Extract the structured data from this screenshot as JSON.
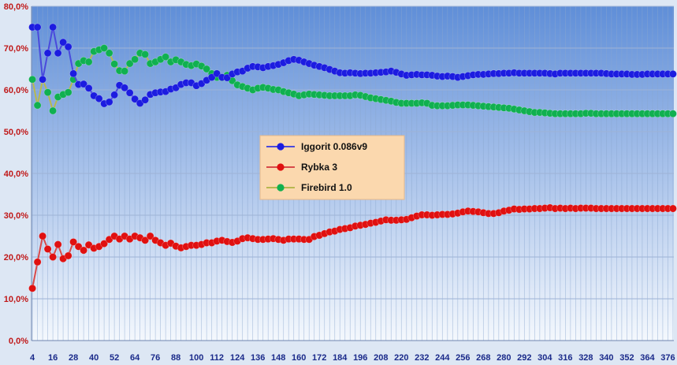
{
  "chart_data": {
    "type": "line",
    "title": "",
    "xlabel": "",
    "ylabel": "",
    "ylim": [
      0,
      80
    ],
    "y_ticks": [
      "0,0%",
      "10,0%",
      "20,0%",
      "30,0%",
      "40,0%",
      "50,0%",
      "60,0%",
      "70,0%",
      "80,0%"
    ],
    "x_ticks": [
      4,
      16,
      28,
      40,
      52,
      64,
      76,
      88,
      100,
      112,
      124,
      136,
      148,
      160,
      172,
      184,
      196,
      208,
      220,
      232,
      244,
      256,
      268,
      280,
      292,
      304,
      316,
      328,
      340,
      352,
      364,
      376
    ],
    "x_range": [
      4,
      379
    ],
    "x_step": 3,
    "grid": true,
    "legend_position": "center",
    "background_gradient": [
      "#5f8ed8",
      "#f4f8fd"
    ],
    "series": [
      {
        "name": "Iggorit 0.086v9",
        "color": "#1c1ce0",
        "line_color": "#4a4adc",
        "values": [
          75.0,
          75.0,
          62.5,
          68.8,
          75.0,
          68.8,
          71.4,
          70.3,
          63.9,
          61.3,
          61.4,
          60.4,
          58.6,
          57.9,
          56.7,
          57.1,
          58.8,
          61.1,
          60.5,
          59.3,
          57.8,
          56.8,
          57.6,
          58.9,
          59.3,
          59.5,
          59.6,
          60.2,
          60.5,
          61.3,
          61.7,
          61.7,
          61.0,
          61.5,
          62.3,
          63.0,
          63.9,
          63.0,
          62.9,
          63.8,
          64.3,
          64.5,
          65.2,
          65.6,
          65.5,
          65.3,
          65.6,
          65.8,
          66.1,
          66.5,
          67.0,
          67.3,
          67.1,
          66.7,
          66.3,
          65.9,
          65.6,
          65.3,
          64.9,
          64.5,
          64.1,
          64.0,
          64.1,
          64.0,
          63.9,
          64.0,
          64.0,
          64.1,
          64.2,
          64.3,
          64.5,
          64.2,
          63.8,
          63.5,
          63.6,
          63.7,
          63.6,
          63.6,
          63.5,
          63.3,
          63.2,
          63.3,
          63.2,
          63.0,
          63.2,
          63.4,
          63.6,
          63.7,
          63.7,
          63.8,
          63.9,
          63.9,
          64.0,
          64.0,
          64.1,
          64.0,
          64.0,
          64.0,
          64.0,
          64.0,
          64.0,
          63.9,
          63.8,
          64.0,
          64.0,
          64.0,
          64.0,
          64.0,
          64.0,
          64.0,
          64.0,
          64.0,
          63.9,
          63.8,
          63.8,
          63.8,
          63.8,
          63.7,
          63.7,
          63.7,
          63.8,
          63.8,
          63.8,
          63.8,
          63.8,
          63.8
        ]
      },
      {
        "name": "Rybka 3",
        "color": "#e01010",
        "line_color": "#d84a4a",
        "values": [
          12.5,
          18.8,
          25.0,
          21.9,
          20.0,
          23.0,
          19.6,
          20.3,
          23.6,
          22.5,
          21.6,
          22.9,
          22.1,
          22.5,
          23.2,
          24.2,
          25.0,
          24.3,
          25.0,
          24.3,
          25.0,
          24.6,
          24.0,
          25.0,
          24.0,
          23.4,
          22.8,
          23.3,
          22.6,
          22.2,
          22.5,
          22.8,
          22.8,
          23.0,
          23.4,
          23.4,
          23.8,
          24.0,
          23.7,
          23.5,
          23.8,
          24.4,
          24.6,
          24.4,
          24.2,
          24.2,
          24.3,
          24.4,
          24.2,
          24.0,
          24.3,
          24.3,
          24.3,
          24.2,
          24.2,
          24.9,
          25.2,
          25.6,
          26.0,
          26.2,
          26.6,
          26.8,
          27.0,
          27.4,
          27.6,
          27.8,
          28.1,
          28.3,
          28.6,
          28.9,
          28.8,
          28.8,
          28.9,
          29.0,
          29.4,
          29.8,
          30.1,
          30.1,
          30.0,
          30.1,
          30.2,
          30.2,
          30.3,
          30.5,
          30.8,
          31.0,
          30.9,
          30.8,
          30.6,
          30.4,
          30.4,
          30.6,
          31.0,
          31.2,
          31.5,
          31.4,
          31.5,
          31.5,
          31.6,
          31.6,
          31.7,
          31.8,
          31.6,
          31.7,
          31.6,
          31.7,
          31.6,
          31.7,
          31.7,
          31.7,
          31.6,
          31.6,
          31.6,
          31.6,
          31.6,
          31.6,
          31.6,
          31.6,
          31.6,
          31.6,
          31.6,
          31.6,
          31.6,
          31.6,
          31.6,
          31.6
        ]
      },
      {
        "name": "Firebird 1.0",
        "color": "#10b050",
        "line_color": "#b8b850",
        "values": [
          62.5,
          56.3,
          62.5,
          59.4,
          55.0,
          58.3,
          58.9,
          59.4,
          62.5,
          66.3,
          67.0,
          66.7,
          69.2,
          69.6,
          70.0,
          68.8,
          66.2,
          64.6,
          64.5,
          66.3,
          67.3,
          68.8,
          68.5,
          66.3,
          66.7,
          67.3,
          67.9,
          66.7,
          67.2,
          66.7,
          66.1,
          65.8,
          66.2,
          65.7,
          65.0,
          63.9,
          63.0,
          62.9,
          63.5,
          62.2,
          61.2,
          60.8,
          60.4,
          60.0,
          60.4,
          60.6,
          60.4,
          60.1,
          60.0,
          59.6,
          59.3,
          59.0,
          58.6,
          58.8,
          59.0,
          58.9,
          58.8,
          58.7,
          58.6,
          58.6,
          58.6,
          58.6,
          58.6,
          58.8,
          58.7,
          58.4,
          58.1,
          57.9,
          57.7,
          57.5,
          57.3,
          57.0,
          56.8,
          56.8,
          56.8,
          56.8,
          56.9,
          56.8,
          56.3,
          56.2,
          56.2,
          56.2,
          56.3,
          56.4,
          56.4,
          56.4,
          56.3,
          56.2,
          56.1,
          56.0,
          55.9,
          55.8,
          55.7,
          55.6,
          55.4,
          55.2,
          55.0,
          54.8,
          54.6,
          54.6,
          54.5,
          54.4,
          54.3,
          54.3,
          54.3,
          54.3,
          54.3,
          54.3,
          54.4,
          54.4,
          54.3,
          54.3,
          54.3,
          54.3,
          54.3,
          54.3,
          54.3,
          54.3,
          54.3,
          54.3,
          54.3,
          54.3,
          54.3,
          54.3,
          54.3,
          54.3
        ]
      }
    ]
  }
}
